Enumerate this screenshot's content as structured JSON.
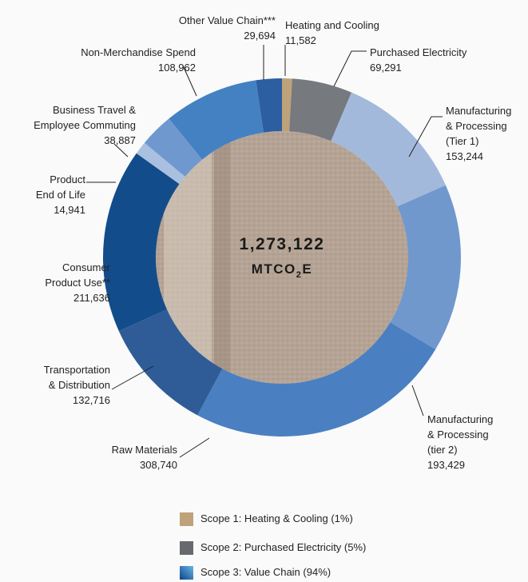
{
  "chart_data": {
    "type": "donut",
    "categories": [
      "Heating and Cooling",
      "Purchased Electricity",
      "Manufacturing\n& Processing\n(Tier 1)",
      "Manufacturing\n& Processing\n(tier 2)",
      "Raw Materials",
      "Transportation\n& Distribution",
      "Consumer\nProduct Use**",
      "Product\nEnd of Life",
      "Business Travel &\nEmployee Commuting",
      "Non-Merchandise Spend",
      "Other Value Chain***"
    ],
    "values": [
      11582,
      69291,
      153244,
      193429,
      308740,
      132716,
      211636,
      14941,
      38887,
      108962,
      29694
    ],
    "value_labels": [
      "11,582",
      "69,291",
      "153,244",
      "193,429",
      "308,740",
      "132,716",
      "211,636",
      "14,941",
      "38,887",
      "108,962",
      "29,694"
    ],
    "colors": [
      "#bfa27a",
      "#76797e",
      "#a3b9dc",
      "#7098cd",
      "#4a80c1",
      "#2f5c97",
      "#134c8b",
      "#a9c0e0",
      "#6f98cf",
      "#4481c3",
      "#2d5ea2"
    ],
    "center": {
      "value": 1273122,
      "label": "1,273,122",
      "unit": [
        "MTCO",
        "2",
        "E"
      ]
    },
    "legend": [
      {
        "label": "Scope 1: Heating & Cooling (1%)",
        "colors": [
          "#bfa27a",
          "#bfa27a"
        ]
      },
      {
        "label": "Scope 2: Purchased Electricity (5%)",
        "colors": [
          "#67696e",
          "#67696e"
        ]
      },
      {
        "label": "Scope 3: Value Chain (94%)",
        "colors": [
          "#0d4386",
          "#6ab6ea"
        ]
      }
    ]
  }
}
